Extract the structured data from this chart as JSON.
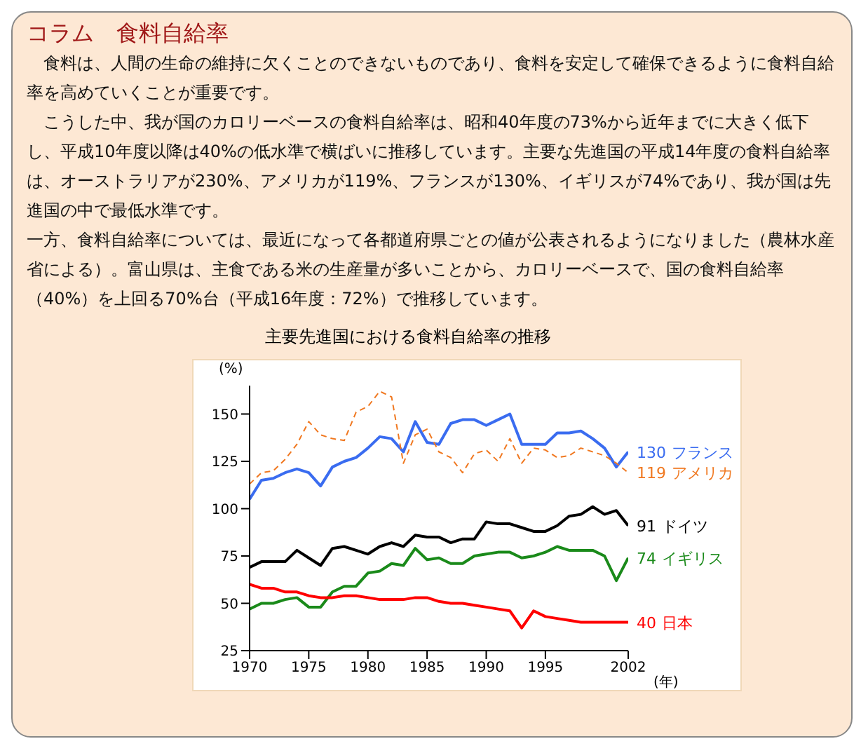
{
  "chart_data": {
    "type": "line",
    "title": "コラム　食料自給率",
    "subtitle": "主要先進国における食料自給率の推移",
    "annotations": [
      "　食料は、人間の生命の維持に欠くことのできないものであり、食料を安定して確保できるように食料自給率を高めていくことが重要です。",
      "　こうした中、我が国のカロリーベースの食料自給率は、昭和40年度の73%から近年までに大きく低下し、平成10年度以降は40%の低水準で横ばいに推移しています。主要な先進国の平成14年度の食料自給率は、オーストラリアが230%、アメリカが119%、フランスが130%、イギリスが74%であり、我が国は先進国の中で最低水準です。",
      "一方、食料自給率については、最近になって各都道府県ごとの値が公表されるようになりました（農林水産省による）。富山県は、主食である米の生産量が多いことから、カロリーベースで、国の食料自給率（40%）を上回る70%台（平成16年度：72%）で推移しています。"
    ],
    "ylabel": "(%)",
    "xlabel": "(年)",
    "x": [
      1970,
      1971,
      1972,
      1973,
      1974,
      1975,
      1976,
      1977,
      1978,
      1979,
      1980,
      1981,
      1982,
      1983,
      1984,
      1985,
      1986,
      1987,
      1988,
      1989,
      1990,
      1991,
      1992,
      1993,
      1994,
      1995,
      1996,
      1997,
      1998,
      1999,
      2000,
      2001,
      2002
    ],
    "xlim": [
      1970,
      2002
    ],
    "xticks": [
      1970,
      1975,
      1980,
      1985,
      1990,
      1995,
      2002
    ],
    "ylim": [
      25,
      165
    ],
    "yticks": [
      25,
      50,
      75,
      100,
      125,
      150
    ],
    "grid": false,
    "legend": false,
    "marker": "none",
    "line_style": "solid",
    "series": [
      {
        "name": "フランス",
        "color": "#3a6cf0",
        "values": [
          105,
          115,
          116,
          119,
          121,
          119,
          112,
          122,
          125,
          127,
          132,
          138,
          137,
          130,
          146,
          135,
          134,
          145,
          147,
          147,
          144,
          147,
          150,
          134,
          134,
          134,
          140,
          140,
          141,
          137,
          132,
          122,
          130
        ],
        "value_labels": [
          null,
          null,
          null,
          null,
          null,
          null,
          null,
          null,
          null,
          null,
          null,
          null,
          null,
          null,
          null,
          null,
          null,
          null,
          null,
          null,
          null,
          null,
          null,
          null,
          null,
          null,
          null,
          null,
          null,
          null,
          null,
          null,
          "130"
        ]
      },
      {
        "name": "アメリカ",
        "color": "#f07820",
        "line_style": "dashed",
        "values": [
          113,
          119,
          120,
          126,
          134,
          146,
          139,
          137,
          136,
          151,
          154,
          162,
          159,
          124,
          139,
          142,
          130,
          127,
          119,
          129,
          131,
          125,
          137,
          124,
          132,
          131,
          127,
          128,
          132,
          130,
          128,
          124,
          119
        ],
        "value_labels": [
          null,
          null,
          null,
          null,
          null,
          null,
          null,
          null,
          null,
          null,
          null,
          null,
          null,
          null,
          null,
          null,
          null,
          null,
          null,
          null,
          null,
          null,
          null,
          null,
          null,
          null,
          null,
          null,
          null,
          null,
          null,
          null,
          "119"
        ]
      },
      {
        "name": "ドイツ",
        "color": "#000000",
        "values": [
          69,
          72,
          72,
          72,
          78,
          74,
          70,
          79,
          80,
          78,
          76,
          80,
          82,
          80,
          86,
          85,
          85,
          82,
          84,
          84,
          93,
          92,
          92,
          90,
          88,
          88,
          91,
          96,
          97,
          101,
          97,
          99,
          91
        ],
        "value_labels": [
          null,
          null,
          null,
          null,
          null,
          null,
          null,
          null,
          null,
          null,
          null,
          null,
          null,
          null,
          null,
          null,
          null,
          null,
          null,
          null,
          null,
          null,
          null,
          null,
          null,
          null,
          null,
          null,
          null,
          null,
          null,
          null,
          "91"
        ]
      },
      {
        "name": "イギリス",
        "color": "#1a8a1a",
        "values": [
          47,
          50,
          50,
          52,
          53,
          48,
          48,
          56,
          59,
          59,
          66,
          67,
          71,
          70,
          79,
          73,
          74,
          71,
          71,
          75,
          76,
          77,
          77,
          74,
          75,
          77,
          80,
          78,
          78,
          78,
          75,
          62,
          74
        ],
        "value_labels": [
          null,
          null,
          null,
          null,
          null,
          null,
          null,
          null,
          null,
          null,
          null,
          null,
          null,
          null,
          null,
          null,
          null,
          null,
          null,
          null,
          null,
          null,
          null,
          null,
          null,
          null,
          null,
          null,
          null,
          null,
          null,
          null,
          "74"
        ]
      },
      {
        "name": "日本",
        "color": "#ff0000",
        "values": [
          60,
          58,
          58,
          56,
          56,
          54,
          53,
          53,
          54,
          54,
          53,
          52,
          52,
          52,
          53,
          53,
          51,
          50,
          50,
          49,
          48,
          47,
          46,
          37,
          46,
          43,
          42,
          41,
          40,
          40,
          40,
          40,
          40
        ],
        "value_labels": [
          null,
          null,
          null,
          null,
          null,
          null,
          null,
          null,
          null,
          null,
          null,
          null,
          null,
          null,
          null,
          null,
          null,
          null,
          null,
          null,
          null,
          null,
          null,
          null,
          null,
          null,
          null,
          null,
          null,
          null,
          null,
          null,
          "40"
        ]
      }
    ]
  }
}
